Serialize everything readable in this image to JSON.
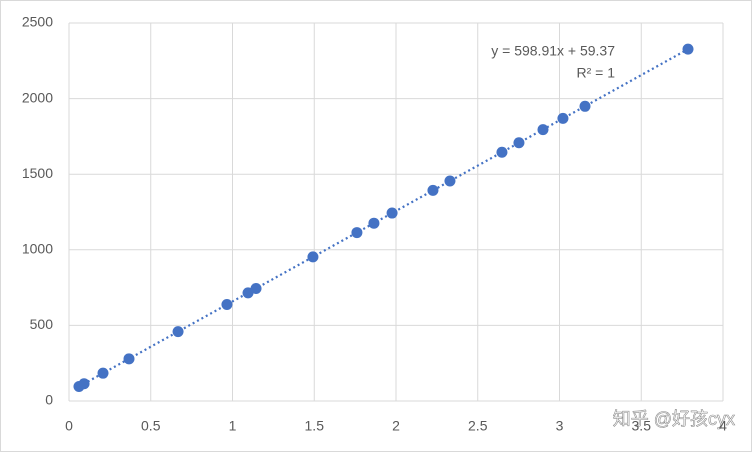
{
  "chart_data": {
    "type": "scatter",
    "x": [
      0.061,
      0.092,
      0.208,
      0.367,
      0.667,
      0.966,
      1.095,
      1.144,
      1.492,
      1.761,
      1.865,
      1.976,
      2.226,
      2.33,
      2.648,
      2.752,
      2.899,
      3.021,
      3.156,
      3.786
    ],
    "values": [
      96,
      114,
      184,
      279,
      459,
      638,
      715,
      744,
      953,
      1114,
      1176,
      1243,
      1393,
      1455,
      1645,
      1708,
      1795,
      1869,
      1949,
      2327
    ],
    "color": "#4472c4",
    "xlim": [
      0,
      4
    ],
    "xticks": [
      0,
      0.5,
      1,
      1.5,
      2,
      2.5,
      3,
      3.5,
      4
    ],
    "ylim": [
      0,
      2500
    ],
    "yticks": [
      0,
      500,
      1000,
      1500,
      2000,
      2500
    ],
    "grid": true,
    "trendline": {
      "slope": 598.91,
      "intercept": 59.37,
      "color": "#4472c4"
    },
    "annotations": [
      "y = 598.91x + 59.37",
      "R² = 1"
    ],
    "watermark": "知乎 @好孩cyx"
  }
}
